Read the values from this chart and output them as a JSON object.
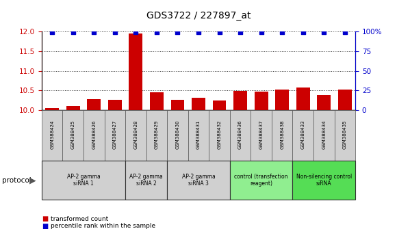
{
  "title": "GDS3722 / 227897_at",
  "samples": [
    "GSM388424",
    "GSM388425",
    "GSM388426",
    "GSM388427",
    "GSM388428",
    "GSM388429",
    "GSM388430",
    "GSM388431",
    "GSM388432",
    "GSM388436",
    "GSM388437",
    "GSM388438",
    "GSM388433",
    "GSM388434",
    "GSM388435"
  ],
  "transformed_counts": [
    10.05,
    10.1,
    10.28,
    10.27,
    11.95,
    10.45,
    10.27,
    10.32,
    10.25,
    10.48,
    10.47,
    10.52,
    10.57,
    10.38,
    10.53
  ],
  "percentile_ranks": [
    99,
    99,
    99,
    99,
    99,
    99,
    99,
    99,
    99,
    99,
    99,
    99,
    99,
    99,
    99
  ],
  "ylim_left": [
    10.0,
    12.0
  ],
  "ylim_right": [
    0,
    100
  ],
  "yticks_left": [
    10.0,
    10.5,
    11.0,
    11.5,
    12.0
  ],
  "yticks_right": [
    0,
    25,
    50,
    75,
    100
  ],
  "ytick_labels_right": [
    "0",
    "25",
    "50",
    "75",
    "100%"
  ],
  "bar_color": "#cc0000",
  "dot_color": "#0000cc",
  "groups": [
    {
      "label": "AP-2 gamma\nsiRNA 1",
      "indices": [
        0,
        1,
        2,
        3
      ],
      "color": "#d0d0d0"
    },
    {
      "label": "AP-2 gamma\nsiRNA 2",
      "indices": [
        4,
        5
      ],
      "color": "#d0d0d0"
    },
    {
      "label": "AP-2 gamma\nsiRNA 3",
      "indices": [
        6,
        7,
        8
      ],
      "color": "#d0d0d0"
    },
    {
      "label": "control (transfection\nreagent)",
      "indices": [
        9,
        10,
        11
      ],
      "color": "#90ee90"
    },
    {
      "label": "Non-silencing control\nsiRNA",
      "indices": [
        12,
        13,
        14
      ],
      "color": "#55dd55"
    }
  ],
  "protocol_label": "protocol",
  "legend_bar_label": "transformed count",
  "legend_dot_label": "percentile rank within the sample",
  "tick_color_left": "#cc0000",
  "tick_color_right": "#0000cc",
  "dotted_line_color": "#333333",
  "sample_box_color": "#d0d0d0"
}
